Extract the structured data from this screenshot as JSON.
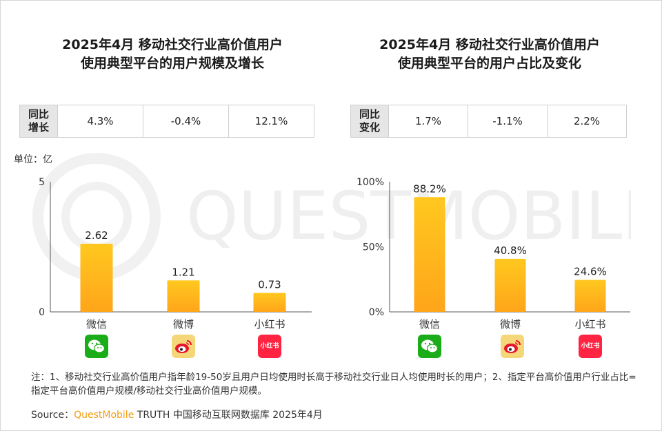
{
  "watermark": "QUESTMOBILE",
  "left": {
    "title_line1": "2025年4月 移动社交行业高价值用户",
    "title_line2": "使用典型平台的用户规模及增长",
    "growth_label_l1": "同比",
    "growth_label_l2": "增长",
    "growth_values": [
      "4.3%",
      "-0.4%",
      "12.1%"
    ],
    "unit": "单位：亿"
  },
  "right": {
    "title_line1": "2025年4月 移动社交行业高价值用户",
    "title_line2": "使用典型平台的用户占比及变化",
    "change_label_l1": "同比",
    "change_label_l2": "变化",
    "change_values": [
      "1.7%",
      "-1.1%",
      "2.2%"
    ]
  },
  "chart_data": [
    {
      "type": "bar",
      "categories": [
        "微信",
        "微博",
        "小红书"
      ],
      "values": [
        2.62,
        1.21,
        0.73
      ],
      "value_labels": [
        "2.62",
        "1.21",
        "0.73"
      ],
      "ylim": [
        0,
        5
      ],
      "ytick_labels": [
        "0",
        "5"
      ],
      "grid": false,
      "bar_color_top": "#ffc81f",
      "bar_color_bottom": "#ffa51a"
    },
    {
      "type": "bar",
      "categories": [
        "微信",
        "微博",
        "小红书"
      ],
      "values": [
        88.2,
        40.8,
        24.6
      ],
      "value_labels": [
        "88.2%",
        "40.8%",
        "24.6%"
      ],
      "ylim": [
        0,
        100
      ],
      "ytick_labels": [
        "0%",
        "50%",
        "100%"
      ],
      "grid": false,
      "bar_color_top": "#ffc81f",
      "bar_color_bottom": "#ffa51a"
    }
  ],
  "app_icons": [
    "wechat-icon",
    "weibo-icon",
    "xiaohongshu-icon"
  ],
  "xiaohongshu_icon_text": "小红书",
  "colors": {
    "wechat": "#1aad19",
    "weibo_bg": "#f5d77a",
    "weibo_red": "#e6162d",
    "xiaohongshu": "#ff2442",
    "brand": "#f39c12"
  },
  "note": "注：1、移动社交行业高价值用户指年龄19-50岁且用户日均使用时长高于移动社交行业日人均使用时长的用户；2、指定平台高价值用户行业占比=指定平台高价值用户规模/移动社交行业高价值用户规模。",
  "source": {
    "prefix": "Source：",
    "brand": "QuestMobile",
    "text": "TRUTH 中国移动互联网数据库 2025年4月"
  }
}
